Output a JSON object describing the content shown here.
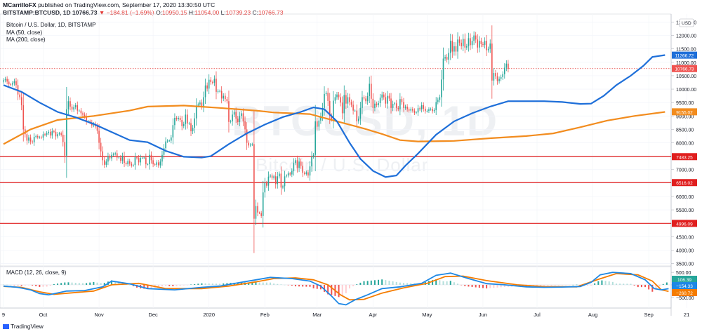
{
  "header": {
    "author": "MCarrilloFX",
    "publish_text": "published on TradingView.com, September 17, 2020 13:30:50 UTC",
    "symbol": "BITSTAMP:BTCUSD, 1D",
    "last_price": "10766.73",
    "change": "▼ −184.81 (−1.69%)",
    "o_label": "O:",
    "o_value": "10950.15",
    "h_label": "H:",
    "h_value": "11054.00",
    "l_label": "L:",
    "l_value": "10739.23",
    "c_label": "C:",
    "c_value": "10766.73"
  },
  "legend": {
    "title": "Bitcoin / U.S. Dollar, 1D, BITSTAMP",
    "ma50": "MA (50, close)",
    "ma200": "MA (200, close)"
  },
  "watermark": {
    "symbol": "BTCUSD, 1D",
    "name": "Bitcoin / U.S. Dollar"
  },
  "macd_label": "MACD (12, 26, close, 9)",
  "branding": "TradingView",
  "colors": {
    "up": "#26a69a",
    "down": "#ef5350",
    "ma50": "#1e6fd9",
    "ma200": "#f28c1e",
    "hline": "#e01e1e",
    "price_dotted": "#e53935",
    "macd_line": "#1e88e5",
    "signal_line": "#f57c00"
  },
  "chart_data": [
    {
      "type": "candlestick",
      "title": "Bitcoin / U.S. Dollar, 1D, BITSTAMP",
      "currency": "USD",
      "y_axis_ticks": [
        12500,
        12000,
        11500,
        11000,
        10500,
        10000,
        9500,
        9000,
        8500,
        8000,
        7500,
        7000,
        6500,
        6000,
        5500,
        5000,
        4500,
        4000,
        3500
      ],
      "y_tick_labels": [
        "12500.00",
        "12000.00",
        "11500.00",
        "11000.00",
        "10500.00",
        "10000.00",
        "9500.00",
        "9000.00",
        "8500.00",
        "8000.00",
        "7500.00",
        "7000.00",
        "6500.00",
        "6000.00",
        "5500.00",
        "5000.00",
        "4500.00",
        "4000.00",
        "3500.00"
      ],
      "ylim": [
        3200,
        12800
      ],
      "x_axis_labels": [
        "9",
        "Oct",
        "Nov",
        "Dec",
        "2020",
        "Feb",
        "Mar",
        "Apr",
        "May",
        "Jun",
        "Jul",
        "Aug",
        "Sep",
        "21"
      ],
      "x_axis_label_bars": [
        0,
        22,
        53,
        83,
        114,
        145,
        174,
        205,
        235,
        266,
        296,
        327,
        358,
        379
      ],
      "series_close": [
        10330,
        10380,
        10280,
        10180,
        10170,
        10220,
        10300,
        10150,
        9800,
        9700,
        9400,
        8500,
        8320,
        8080,
        8200,
        8050,
        8020,
        8220,
        8250,
        8200,
        8210,
        8190,
        8320,
        8300,
        8360,
        8410,
        8270,
        8430,
        8410,
        8240,
        8320,
        8350,
        8300,
        8030,
        7520,
        9250,
        9550,
        9350,
        9240,
        9330,
        9400,
        9200,
        9200,
        9100,
        9050,
        8980,
        8800,
        8800,
        8760,
        8650,
        8700,
        8610,
        8450,
        8000,
        7680,
        7350,
        7180,
        7300,
        7500,
        7420,
        7550,
        7580,
        7610,
        7450,
        7450,
        7330,
        7510,
        7250,
        7200,
        7320,
        7220,
        7150,
        7170,
        7460,
        7430,
        7270,
        7440,
        7440,
        7450,
        7200,
        7200,
        7550,
        7350,
        7200,
        7180,
        7270,
        7160,
        7300,
        7550,
        7800,
        8050,
        8080,
        8080,
        8200,
        8660,
        8930,
        8880,
        8930,
        8850,
        8620,
        8700,
        9050,
        8720,
        8730,
        8430,
        8560,
        8910,
        9390,
        9430,
        9500,
        9350,
        9700,
        10140,
        10020,
        10350,
        10260,
        10240,
        10390,
        9900,
        9930,
        9930,
        9650,
        9750,
        9630,
        9550,
        8780,
        8800,
        9050,
        9150,
        8900,
        8770,
        9000,
        9100,
        8800,
        8500,
        8000,
        7900,
        7930,
        7950,
        5170,
        5640,
        5400,
        5380,
        5270,
        6150,
        6500,
        6400,
        6740,
        6780,
        6690,
        6750,
        6460,
        6750,
        6850,
        6330,
        6380,
        6750,
        6780,
        6860,
        6820,
        6950,
        7250,
        7350,
        7060,
        7300,
        7140,
        6880,
        6840,
        6900,
        6780,
        7120,
        7480,
        7550,
        8800,
        8600,
        8830,
        9000,
        9300,
        9820,
        9860,
        9560,
        9000,
        8890,
        9570,
        9700,
        9800,
        9700,
        9500,
        9100,
        9780,
        9460,
        9700,
        9520,
        9420,
        9200,
        9200,
        8800,
        8900,
        9300,
        9700,
        9650,
        9550,
        9740,
        10200,
        9640,
        9300,
        9460,
        9400,
        9480,
        9680,
        9800,
        9700,
        9460,
        9750,
        9650,
        9300,
        9450,
        9470,
        9300,
        9250,
        9630,
        9520,
        9300,
        9350,
        9250,
        9200,
        9260,
        9200,
        9120,
        9130,
        9290,
        9250,
        9400,
        9270,
        9180,
        9190,
        9250,
        9260,
        9180,
        9220,
        9520,
        9600,
        9700,
        10360,
        11140,
        11200,
        11100,
        11350,
        11800,
        11400,
        11600,
        11400,
        11850,
        11730,
        11600,
        11870,
        11550,
        11600,
        11900,
        11640,
        11800,
        12000,
        11850,
        11550,
        11800,
        11680,
        11650,
        11800,
        11450,
        11500,
        11700,
        10320,
        10600,
        10480,
        10300,
        10380,
        10450,
        10560,
        10800,
        10950,
        10766.73
      ],
      "ma50_points": [
        [
          0,
          10150
        ],
        [
          10,
          9900
        ],
        [
          20,
          9500
        ],
        [
          30,
          9150
        ],
        [
          40,
          8950
        ],
        [
          50,
          8700
        ],
        [
          60,
          8400
        ],
        [
          70,
          8100
        ],
        [
          80,
          8020
        ],
        [
          90,
          7700
        ],
        [
          100,
          7480
        ],
        [
          110,
          7450
        ],
        [
          115,
          7500
        ],
        [
          125,
          7950
        ],
        [
          135,
          8350
        ],
        [
          145,
          8680
        ],
        [
          155,
          8960
        ],
        [
          165,
          9150
        ],
        [
          172,
          9320
        ],
        [
          178,
          9250
        ],
        [
          185,
          8800
        ],
        [
          192,
          8000
        ],
        [
          198,
          7400
        ],
        [
          205,
          6950
        ],
        [
          212,
          6720
        ],
        [
          218,
          6780
        ],
        [
          223,
          7150
        ],
        [
          230,
          7600
        ],
        [
          240,
          8300
        ],
        [
          250,
          8800
        ],
        [
          260,
          9100
        ],
        [
          270,
          9350
        ],
        [
          280,
          9550
        ],
        [
          290,
          9550
        ],
        [
          300,
          9550
        ],
        [
          310,
          9520
        ],
        [
          320,
          9450
        ],
        [
          326,
          9460
        ],
        [
          333,
          9750
        ],
        [
          340,
          10150
        ],
        [
          348,
          10500
        ],
        [
          355,
          10870
        ],
        [
          360,
          11200
        ],
        [
          367,
          11270
        ]
      ],
      "ma200_points": [
        [
          0,
          7950
        ],
        [
          15,
          8500
        ],
        [
          30,
          8850
        ],
        [
          50,
          9000
        ],
        [
          70,
          9200
        ],
        [
          80,
          9350
        ],
        [
          100,
          9390
        ],
        [
          120,
          9300
        ],
        [
          140,
          9200
        ],
        [
          150,
          9130
        ],
        [
          170,
          9070
        ],
        [
          185,
          8800
        ],
        [
          200,
          8530
        ],
        [
          210,
          8330
        ],
        [
          220,
          8100
        ],
        [
          230,
          8050
        ],
        [
          250,
          8070
        ],
        [
          270,
          8170
        ],
        [
          290,
          8250
        ],
        [
          305,
          8350
        ],
        [
          320,
          8580
        ],
        [
          335,
          8830
        ],
        [
          350,
          9000
        ],
        [
          367,
          9150
        ]
      ],
      "horizontal_levels": [
        {
          "value": 7483.25,
          "label": "7483.25"
        },
        {
          "value": 6516.02,
          "label": "6516.02"
        },
        {
          "value": 4996.09,
          "label": "4996.09"
        }
      ],
      "price_labels": [
        {
          "value": 11266.72,
          "label": "11266.72",
          "series": "MA (50, close)"
        },
        {
          "value": 10766.73,
          "label": "10766.73",
          "series": "last price"
        },
        {
          "value": 9155.02,
          "label": "9155.02",
          "series": "MA (200, close)"
        }
      ]
    },
    {
      "type": "line",
      "title": "MACD (12, 26, close, 9)",
      "y_axis_ticks": [
        500,
        0,
        -500
      ],
      "y_tick_labels": [
        "500.00",
        "0.00",
        "−500.00"
      ],
      "ylim": [
        -900,
        700
      ],
      "macd_points": [
        [
          0,
          -50
        ],
        [
          8,
          -100
        ],
        [
          15,
          -200
        ],
        [
          20,
          -350
        ],
        [
          25,
          -400
        ],
        [
          35,
          -250
        ],
        [
          45,
          -230
        ],
        [
          55,
          -80
        ],
        [
          60,
          150
        ],
        [
          70,
          40
        ],
        [
          80,
          -150
        ],
        [
          95,
          -200
        ],
        [
          110,
          -100
        ],
        [
          120,
          -50
        ],
        [
          130,
          80
        ],
        [
          140,
          200
        ],
        [
          148,
          300
        ],
        [
          160,
          250
        ],
        [
          170,
          150
        ],
        [
          176,
          -50
        ],
        [
          182,
          -450
        ],
        [
          186,
          -750
        ],
        [
          190,
          -800
        ],
        [
          195,
          -600
        ],
        [
          202,
          -400
        ],
        [
          210,
          -150
        ],
        [
          220,
          -80
        ],
        [
          232,
          60
        ],
        [
          240,
          380
        ],
        [
          248,
          470
        ],
        [
          258,
          250
        ],
        [
          268,
          50
        ],
        [
          278,
          0
        ],
        [
          290,
          -80
        ],
        [
          300,
          -100
        ],
        [
          310,
          -90
        ],
        [
          320,
          -70
        ],
        [
          326,
          100
        ],
        [
          331,
          400
        ],
        [
          338,
          500
        ],
        [
          348,
          450
        ],
        [
          356,
          200
        ],
        [
          361,
          -150
        ],
        [
          365,
          -200
        ],
        [
          369,
          -154
        ]
      ],
      "signal_points": [
        [
          0,
          -60
        ],
        [
          10,
          -100
        ],
        [
          20,
          -280
        ],
        [
          28,
          -380
        ],
        [
          38,
          -320
        ],
        [
          50,
          -250
        ],
        [
          60,
          0
        ],
        [
          75,
          60
        ],
        [
          90,
          -150
        ],
        [
          110,
          -150
        ],
        [
          125,
          -50
        ],
        [
          140,
          120
        ],
        [
          150,
          250
        ],
        [
          162,
          280
        ],
        [
          172,
          200
        ],
        [
          180,
          0
        ],
        [
          187,
          -400
        ],
        [
          192,
          -600
        ],
        [
          200,
          -580
        ],
        [
          210,
          -330
        ],
        [
          222,
          -120
        ],
        [
          235,
          60
        ],
        [
          245,
          330
        ],
        [
          255,
          350
        ],
        [
          268,
          170
        ],
        [
          285,
          0
        ],
        [
          300,
          -70
        ],
        [
          318,
          -80
        ],
        [
          330,
          220
        ],
        [
          340,
          450
        ],
        [
          352,
          400
        ],
        [
          360,
          150
        ],
        [
          365,
          -200
        ],
        [
          369,
          -260
        ]
      ],
      "histogram_note": "green/red bars between MACD and signal",
      "price_labels": [
        {
          "value": 106.39,
          "label": "106.39",
          "series": "histogram"
        },
        {
          "value": -154.33,
          "label": "−154.33",
          "series": "MACD"
        },
        {
          "value": -260.72,
          "label": "−260.72",
          "series": "signal"
        }
      ]
    }
  ]
}
